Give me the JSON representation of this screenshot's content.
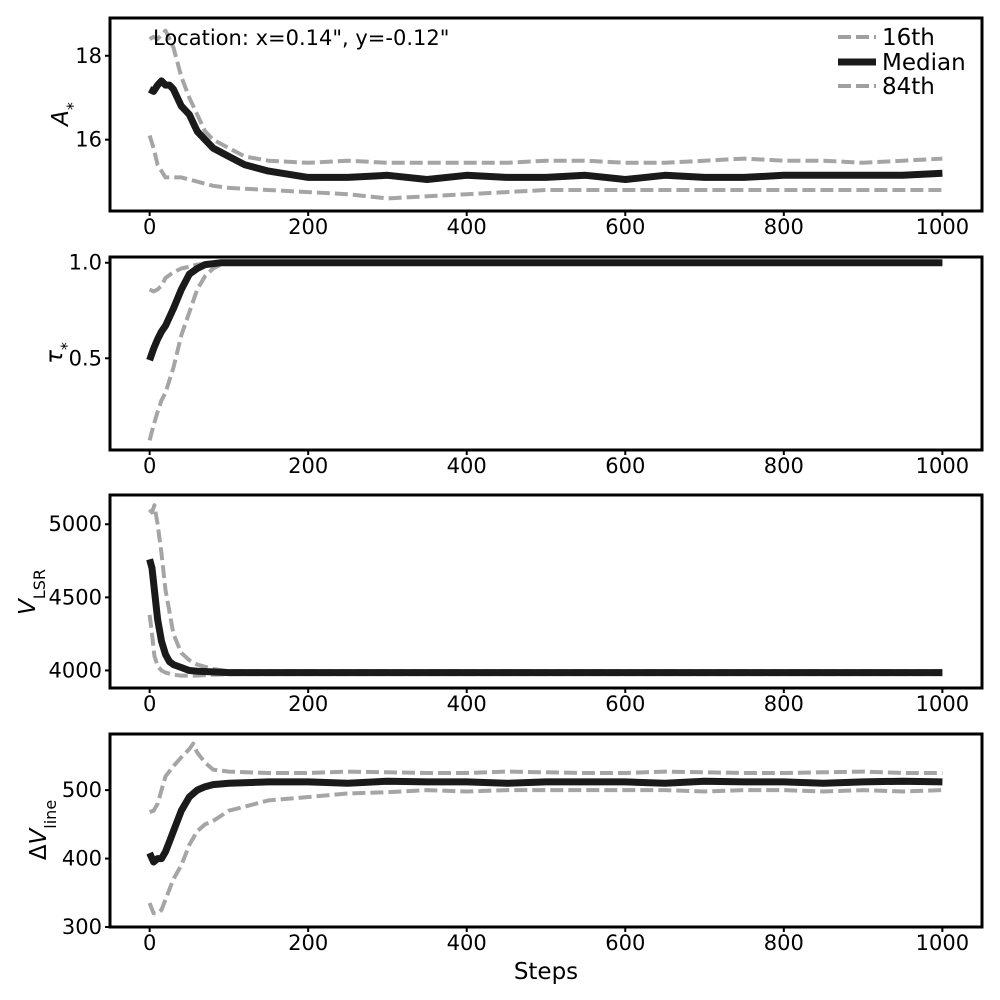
{
  "colors": {
    "median": "#1a1a1a",
    "percentile": "#a0a0a0",
    "frame": "#000000",
    "background": "#ffffff"
  },
  "figure": {
    "annotation": "Location: x=0.14\", y=-0.12\"",
    "xlabel": "Steps",
    "legend": {
      "placement": "top-right",
      "entries": [
        {
          "label": "16th",
          "style": "dashed",
          "color": "#a0a0a0"
        },
        {
          "label": "Median",
          "style": "solid",
          "color": "#1a1a1a"
        },
        {
          "label": "84th",
          "style": "dashed",
          "color": "#a0a0a0"
        }
      ]
    }
  },
  "chart_data": [
    {
      "type": "line",
      "ylabel": "A*",
      "xlim": [
        -50,
        1050
      ],
      "ylim": [
        14.3,
        18.9
      ],
      "xticks": [
        0,
        200,
        400,
        600,
        800,
        1000
      ],
      "xtick_labels": [
        "0",
        "200",
        "400",
        "600",
        "800",
        "1000"
      ],
      "yticks": [
        16,
        18
      ],
      "ytick_labels": [
        "16",
        "18"
      ],
      "series": [
        {
          "name": "16th",
          "style": "dashed",
          "x": [
            0,
            5,
            10,
            20,
            30,
            40,
            60,
            80,
            100,
            150,
            200,
            250,
            300,
            350,
            400,
            500,
            600,
            700,
            800,
            900,
            1000
          ],
          "y": [
            16.1,
            15.8,
            15.4,
            15.1,
            15.1,
            15.1,
            15.0,
            14.9,
            14.85,
            14.8,
            14.75,
            14.7,
            14.6,
            14.65,
            14.7,
            14.8,
            14.8,
            14.8,
            14.8,
            14.8,
            14.8
          ]
        },
        {
          "name": "Median",
          "style": "solid",
          "x": [
            0,
            5,
            10,
            15,
            20,
            25,
            30,
            40,
            50,
            60,
            70,
            80,
            100,
            120,
            150,
            200,
            250,
            300,
            350,
            400,
            450,
            500,
            550,
            600,
            650,
            700,
            750,
            800,
            850,
            900,
            950,
            1000
          ],
          "y": [
            17.2,
            17.15,
            17.3,
            17.4,
            17.3,
            17.3,
            17.2,
            16.8,
            16.6,
            16.2,
            16.0,
            15.8,
            15.6,
            15.4,
            15.25,
            15.1,
            15.1,
            15.15,
            15.05,
            15.15,
            15.1,
            15.1,
            15.15,
            15.05,
            15.15,
            15.1,
            15.1,
            15.15,
            15.15,
            15.15,
            15.15,
            15.2
          ]
        },
        {
          "name": "84th",
          "style": "dashed",
          "x": [
            0,
            5,
            10,
            15,
            20,
            25,
            30,
            40,
            50,
            60,
            70,
            80,
            100,
            120,
            150,
            200,
            250,
            300,
            350,
            400,
            450,
            500,
            550,
            600,
            650,
            700,
            750,
            800,
            850,
            900,
            950,
            1000
          ],
          "y": [
            18.4,
            18.45,
            18.4,
            18.5,
            18.6,
            18.4,
            18.2,
            17.5,
            17.0,
            16.6,
            16.2,
            16.0,
            15.8,
            15.6,
            15.5,
            15.45,
            15.5,
            15.45,
            15.45,
            15.45,
            15.45,
            15.5,
            15.5,
            15.45,
            15.45,
            15.5,
            15.55,
            15.5,
            15.5,
            15.45,
            15.5,
            15.55
          ]
        }
      ]
    },
    {
      "type": "line",
      "ylabel": "τ*",
      "xlim": [
        -50,
        1050
      ],
      "ylim": [
        0.02,
        1.03
      ],
      "xticks": [
        0,
        200,
        400,
        600,
        800,
        1000
      ],
      "xtick_labels": [
        "0",
        "200",
        "400",
        "600",
        "800",
        "1000"
      ],
      "yticks": [
        0.5,
        1.0
      ],
      "ytick_labels": [
        "0.5",
        "1.0"
      ],
      "series": [
        {
          "name": "16th",
          "style": "dashed",
          "x": [
            0,
            5,
            10,
            15,
            20,
            30,
            40,
            50,
            60,
            70,
            80,
            90,
            100,
            1000
          ],
          "y": [
            0.07,
            0.15,
            0.22,
            0.28,
            0.32,
            0.45,
            0.62,
            0.74,
            0.86,
            0.93,
            0.97,
            0.99,
            1.0,
            1.0
          ]
        },
        {
          "name": "Median",
          "style": "solid",
          "x": [
            0,
            5,
            10,
            15,
            20,
            30,
            40,
            50,
            60,
            70,
            80,
            90,
            100,
            1000
          ],
          "y": [
            0.49,
            0.55,
            0.6,
            0.64,
            0.67,
            0.76,
            0.86,
            0.94,
            0.97,
            0.99,
            0.995,
            1.0,
            1.0,
            1.0
          ]
        },
        {
          "name": "84th",
          "style": "dashed",
          "x": [
            0,
            5,
            10,
            15,
            20,
            30,
            40,
            50,
            60,
            70,
            80,
            100,
            1000
          ],
          "y": [
            0.86,
            0.85,
            0.86,
            0.88,
            0.92,
            0.95,
            0.97,
            0.98,
            0.99,
            0.995,
            1.0,
            1.0,
            1.0
          ]
        }
      ]
    },
    {
      "type": "line",
      "ylabel": "V_LSR",
      "xlim": [
        -50,
        1050
      ],
      "ylim": [
        3880,
        5200
      ],
      "xticks": [
        0,
        200,
        400,
        600,
        800,
        1000
      ],
      "xtick_labels": [
        "0",
        "200",
        "400",
        "600",
        "800",
        "1000"
      ],
      "yticks": [
        4000,
        4500,
        5000
      ],
      "ytick_labels": [
        "4000",
        "4500",
        "5000"
      ],
      "series": [
        {
          "name": "16th",
          "style": "dashed",
          "x": [
            0,
            3,
            6,
            10,
            15,
            20,
            30,
            40,
            60,
            80,
            100,
            1000
          ],
          "y": [
            4380,
            4250,
            4100,
            4030,
            4000,
            3985,
            3970,
            3965,
            3965,
            3970,
            3975,
            3975
          ]
        },
        {
          "name": "Median",
          "style": "solid",
          "x": [
            0,
            3,
            6,
            10,
            15,
            20,
            25,
            30,
            40,
            50,
            60,
            80,
            100,
            150,
            200,
            1000
          ],
          "y": [
            4760,
            4700,
            4550,
            4350,
            4200,
            4110,
            4060,
            4040,
            4020,
            4000,
            3995,
            3990,
            3985,
            3985,
            3985,
            3985
          ]
        },
        {
          "name": "84th",
          "style": "dashed",
          "x": [
            0,
            3,
            6,
            10,
            15,
            20,
            25,
            30,
            40,
            50,
            60,
            80,
            100,
            1000
          ],
          "y": [
            5100,
            5080,
            5130,
            5000,
            4800,
            4550,
            4400,
            4250,
            4120,
            4070,
            4040,
            4010,
            3995,
            3995
          ]
        }
      ]
    },
    {
      "type": "line",
      "ylabel": "ΔV_line",
      "xlim": [
        -50,
        1050
      ],
      "ylim": [
        300,
        582
      ],
      "xticks": [
        0,
        200,
        400,
        600,
        800,
        1000
      ],
      "xtick_labels": [
        "0",
        "200",
        "400",
        "600",
        "800",
        "1000"
      ],
      "yticks": [
        300,
        400,
        500
      ],
      "ytick_labels": [
        "300",
        "400",
        "500"
      ],
      "series": [
        {
          "name": "16th",
          "style": "dashed",
          "x": [
            0,
            5,
            10,
            15,
            20,
            30,
            40,
            50,
            60,
            70,
            80,
            100,
            150,
            200,
            250,
            300,
            350,
            400,
            450,
            500,
            550,
            600,
            650,
            700,
            750,
            800,
            850,
            900,
            950,
            1000
          ],
          "y": [
            335,
            320,
            320,
            325,
            340,
            370,
            390,
            420,
            440,
            450,
            455,
            470,
            485,
            490,
            495,
            497,
            500,
            498,
            500,
            500,
            500,
            500,
            500,
            498,
            500,
            500,
            498,
            500,
            498,
            500
          ]
        },
        {
          "name": "Median",
          "style": "solid",
          "x": [
            0,
            5,
            10,
            15,
            20,
            25,
            30,
            40,
            50,
            60,
            70,
            80,
            100,
            150,
            200,
            250,
            300,
            350,
            400,
            450,
            500,
            550,
            600,
            650,
            700,
            750,
            800,
            850,
            900,
            950,
            1000
          ],
          "y": [
            408,
            395,
            400,
            400,
            410,
            425,
            440,
            470,
            490,
            500,
            505,
            508,
            510,
            512,
            512,
            510,
            513,
            512,
            512,
            510,
            512,
            512,
            512,
            510,
            513,
            512,
            512,
            510,
            512,
            513,
            512
          ]
        },
        {
          "name": "84th",
          "style": "dashed",
          "x": [
            0,
            5,
            10,
            15,
            20,
            30,
            40,
            50,
            55,
            60,
            70,
            80,
            100,
            150,
            200,
            250,
            300,
            350,
            400,
            450,
            500,
            550,
            600,
            650,
            700,
            750,
            800,
            850,
            900,
            950,
            1000
          ],
          "y": [
            468,
            470,
            480,
            500,
            520,
            535,
            548,
            560,
            568,
            555,
            540,
            530,
            527,
            525,
            525,
            527,
            526,
            525,
            525,
            527,
            526,
            525,
            525,
            527,
            526,
            525,
            525,
            526,
            527,
            525,
            525
          ]
        }
      ]
    }
  ]
}
